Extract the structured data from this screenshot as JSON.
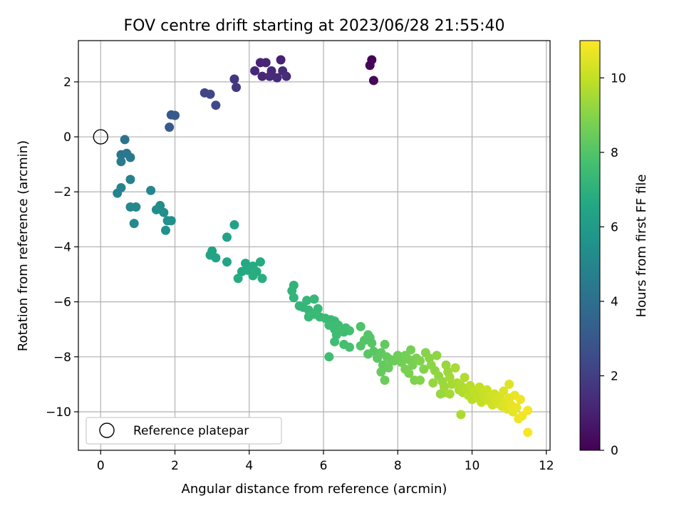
{
  "chart_data": {
    "type": "scatter",
    "title": "FOV centre drift starting at 2023/06/28 21:55:40",
    "xlabel": "Angular distance from reference (arcmin)",
    "ylabel": "Rotation from reference (arcmin)",
    "xlim": [
      -0.6,
      12.1
    ],
    "ylim": [
      -11.4,
      3.5
    ],
    "xticks": [
      0,
      2,
      4,
      6,
      8,
      10,
      12
    ],
    "yticks": [
      2,
      0,
      -2,
      -4,
      -6,
      -8,
      -10
    ],
    "grid": true,
    "legend": {
      "location": "lower-left",
      "label": "Reference platepar"
    },
    "reference_point": {
      "x": 0,
      "y": 0
    },
    "colorbar": {
      "label": "Hours from first FF file",
      "colormap": "viridis",
      "range": [
        0,
        11
      ],
      "ticks": [
        0,
        2,
        4,
        6,
        8,
        10
      ]
    },
    "series": [
      {
        "name": "Reference platepar",
        "marker": "hollow-circle",
        "x": [
          0
        ],
        "y": [
          0
        ]
      },
      {
        "marker": "filled-circle",
        "points": [
          [
            7.3,
            2.8,
            0.1
          ],
          [
            7.25,
            2.6,
            0.15
          ],
          [
            7.35,
            2.05,
            0.2
          ],
          [
            4.85,
            2.8,
            1.0
          ],
          [
            4.3,
            2.7,
            1.1
          ],
          [
            4.45,
            2.7,
            1.15
          ],
          [
            4.6,
            2.4,
            1.2
          ],
          [
            4.15,
            2.4,
            1.2
          ],
          [
            4.35,
            2.2,
            1.25
          ],
          [
            4.55,
            2.2,
            1.3
          ],
          [
            4.75,
            2.15,
            1.3
          ],
          [
            4.9,
            2.4,
            1.35
          ],
          [
            5.0,
            2.2,
            1.4
          ],
          [
            3.6,
            2.1,
            1.7
          ],
          [
            3.65,
            1.8,
            1.75
          ],
          [
            2.8,
            1.6,
            2.2
          ],
          [
            2.95,
            1.55,
            2.3
          ],
          [
            3.1,
            1.15,
            2.4
          ],
          [
            1.9,
            0.8,
            3.0
          ],
          [
            2.0,
            0.78,
            3.1
          ],
          [
            1.85,
            0.35,
            3.1
          ],
          [
            0.65,
            -0.1,
            4.2
          ],
          [
            0.55,
            -0.65,
            4.3
          ],
          [
            0.7,
            -0.6,
            4.35
          ],
          [
            0.8,
            -0.75,
            4.4
          ],
          [
            0.55,
            -0.9,
            4.5
          ],
          [
            0.8,
            -1.55,
            4.8
          ],
          [
            0.55,
            -1.85,
            4.9
          ],
          [
            0.45,
            -2.05,
            4.9
          ],
          [
            1.35,
            -1.95,
            5.0
          ],
          [
            0.8,
            -2.55,
            5.1
          ],
          [
            0.95,
            -2.55,
            5.15
          ],
          [
            0.9,
            -3.15,
            5.2
          ],
          [
            1.5,
            -2.65,
            5.3
          ],
          [
            1.6,
            -2.5,
            5.35
          ],
          [
            1.7,
            -2.75,
            5.4
          ],
          [
            1.8,
            -3.05,
            5.45
          ],
          [
            1.9,
            -3.05,
            5.5
          ],
          [
            1.75,
            -3.4,
            5.5
          ],
          [
            3.6,
            -3.2,
            6.3
          ],
          [
            3.4,
            -3.65,
            6.3
          ],
          [
            3.0,
            -4.15,
            6.35
          ],
          [
            2.95,
            -4.3,
            6.4
          ],
          [
            3.1,
            -4.4,
            6.4
          ],
          [
            3.4,
            -4.55,
            6.45
          ],
          [
            3.9,
            -4.6,
            6.6
          ],
          [
            3.8,
            -4.9,
            6.6
          ],
          [
            3.95,
            -4.85,
            6.65
          ],
          [
            4.1,
            -4.7,
            6.7
          ],
          [
            4.3,
            -4.55,
            6.75
          ],
          [
            4.2,
            -4.9,
            6.8
          ],
          [
            4.1,
            -5.05,
            6.8
          ],
          [
            3.7,
            -5.15,
            6.75
          ],
          [
            4.35,
            -5.15,
            6.85
          ],
          [
            5.2,
            -5.4,
            7.1
          ],
          [
            5.15,
            -5.6,
            7.15
          ],
          [
            5.2,
            -5.85,
            7.15
          ],
          [
            5.35,
            -6.15,
            7.2
          ],
          [
            5.45,
            -6.2,
            7.2
          ],
          [
            5.55,
            -5.95,
            7.25
          ],
          [
            5.6,
            -6.3,
            7.25
          ],
          [
            5.75,
            -5.9,
            7.3
          ],
          [
            5.85,
            -6.25,
            7.3
          ],
          [
            5.6,
            -6.55,
            7.35
          ],
          [
            5.75,
            -6.45,
            7.35
          ],
          [
            5.9,
            -6.55,
            7.4
          ],
          [
            6.05,
            -6.6,
            7.4
          ],
          [
            6.2,
            -6.65,
            7.45
          ],
          [
            6.3,
            -6.7,
            7.45
          ],
          [
            6.15,
            -6.85,
            7.5
          ],
          [
            6.3,
            -7.0,
            7.5
          ],
          [
            6.4,
            -6.85,
            7.55
          ],
          [
            6.5,
            -7.0,
            7.6
          ],
          [
            6.35,
            -7.2,
            7.55
          ],
          [
            6.6,
            -6.95,
            7.65
          ],
          [
            6.7,
            -7.05,
            7.7
          ],
          [
            6.3,
            -7.45,
            7.6
          ],
          [
            6.55,
            -7.55,
            7.7
          ],
          [
            6.7,
            -7.65,
            7.75
          ],
          [
            6.15,
            -8.0,
            7.6
          ],
          [
            7.0,
            -6.9,
            7.9
          ],
          [
            7.1,
            -7.4,
            8.0
          ],
          [
            7.0,
            -7.6,
            8.0
          ],
          [
            7.2,
            -7.2,
            8.05
          ],
          [
            7.3,
            -7.5,
            8.1
          ],
          [
            7.2,
            -7.9,
            8.1
          ],
          [
            7.35,
            -7.8,
            8.15
          ],
          [
            7.45,
            -8.05,
            8.2
          ],
          [
            7.55,
            -7.85,
            8.25
          ],
          [
            7.65,
            -7.55,
            8.3
          ],
          [
            7.7,
            -8.0,
            8.35
          ],
          [
            7.8,
            -8.1,
            8.4
          ],
          [
            7.6,
            -8.3,
            8.35
          ],
          [
            7.75,
            -8.4,
            8.45
          ],
          [
            7.9,
            -8.15,
            8.5
          ],
          [
            7.55,
            -8.55,
            8.4
          ],
          [
            7.65,
            -8.85,
            8.5
          ],
          [
            8.0,
            -7.95,
            8.55
          ],
          [
            8.1,
            -8.2,
            8.6
          ],
          [
            8.2,
            -7.95,
            8.65
          ],
          [
            8.3,
            -8.1,
            8.7
          ],
          [
            8.35,
            -7.75,
            8.7
          ],
          [
            8.4,
            -8.3,
            8.75
          ],
          [
            8.5,
            -8.05,
            8.8
          ],
          [
            8.2,
            -8.45,
            8.75
          ],
          [
            8.3,
            -8.6,
            8.8
          ],
          [
            8.45,
            -8.85,
            8.85
          ],
          [
            8.6,
            -8.15,
            8.9
          ],
          [
            8.7,
            -8.45,
            8.95
          ],
          [
            8.6,
            -8.85,
            8.95
          ],
          [
            8.75,
            -7.85,
            9.0
          ],
          [
            8.85,
            -8.05,
            9.05
          ],
          [
            8.9,
            -8.3,
            9.1
          ],
          [
            9.0,
            -8.5,
            9.15
          ],
          [
            9.05,
            -7.95,
            9.15
          ],
          [
            9.1,
            -8.7,
            9.2
          ],
          [
            8.95,
            -8.95,
            9.25
          ],
          [
            9.2,
            -8.9,
            9.3
          ],
          [
            9.25,
            -9.1,
            9.35
          ],
          [
            9.3,
            -8.3,
            9.3
          ],
          [
            9.35,
            -8.55,
            9.35
          ],
          [
            9.25,
            -9.3,
            9.4
          ],
          [
            9.4,
            -8.75,
            9.45
          ],
          [
            9.45,
            -9.0,
            9.5
          ],
          [
            9.4,
            -9.35,
            9.5
          ],
          [
            9.55,
            -8.4,
            9.55
          ],
          [
            9.6,
            -8.95,
            9.6
          ],
          [
            9.65,
            -9.2,
            9.6
          ],
          [
            9.7,
            -9.05,
            9.65
          ],
          [
            9.75,
            -9.3,
            9.7
          ],
          [
            9.8,
            -8.75,
            9.7
          ],
          [
            9.85,
            -9.15,
            9.75
          ],
          [
            9.9,
            -9.4,
            9.8
          ],
          [
            9.95,
            -9.05,
            9.8
          ],
          [
            10.0,
            -9.55,
            9.85
          ],
          [
            10.05,
            -9.25,
            9.9
          ],
          [
            10.1,
            -9.35,
            9.9
          ],
          [
            10.15,
            -9.5,
            9.95
          ],
          [
            10.2,
            -9.1,
            10.0
          ],
          [
            10.25,
            -9.65,
            10.0
          ],
          [
            10.3,
            -9.3,
            10.05
          ],
          [
            10.35,
            -9.45,
            10.1
          ],
          [
            10.4,
            -9.2,
            10.1
          ],
          [
            10.45,
            -9.6,
            10.15
          ],
          [
            10.5,
            -9.4,
            10.2
          ],
          [
            10.55,
            -9.75,
            10.2
          ],
          [
            10.6,
            -9.35,
            10.25
          ],
          [
            10.65,
            -9.55,
            10.3
          ],
          [
            10.7,
            -9.7,
            10.3
          ],
          [
            10.75,
            -9.45,
            10.35
          ],
          [
            10.8,
            -9.8,
            10.4
          ],
          [
            10.85,
            -9.25,
            10.4
          ],
          [
            10.9,
            -9.6,
            10.45
          ],
          [
            10.95,
            -9.9,
            10.5
          ],
          [
            11.0,
            -9.0,
            10.5
          ],
          [
            11.0,
            -9.5,
            10.55
          ],
          [
            11.05,
            -9.75,
            10.6
          ],
          [
            11.1,
            -10.0,
            10.6
          ],
          [
            11.15,
            -9.4,
            10.65
          ],
          [
            11.2,
            -9.85,
            10.7
          ],
          [
            11.25,
            -10.25,
            10.75
          ],
          [
            11.3,
            -9.55,
            10.75
          ],
          [
            11.35,
            -10.15,
            10.8
          ],
          [
            11.5,
            -9.95,
            10.85
          ],
          [
            11.5,
            -10.75,
            10.9
          ],
          [
            9.7,
            -10.1,
            9.6
          ],
          [
            9.15,
            -9.35,
            9.3
          ],
          [
            7.25,
            -7.3,
            8.0
          ],
          [
            6.55,
            -7.1,
            7.6
          ]
        ]
      }
    ]
  }
}
